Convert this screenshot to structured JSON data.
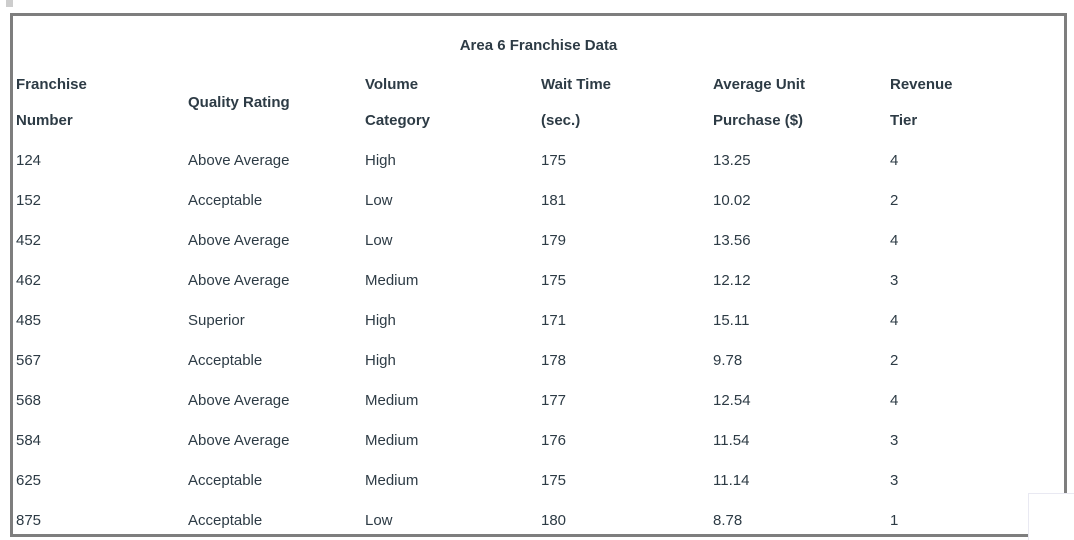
{
  "colors": {
    "text": "#2d3b45",
    "table_border": "#7e7e7e",
    "overlay_border": "#e9e9f2",
    "corner_mark": "#cdcdcd",
    "background": "#ffffff"
  },
  "table": {
    "title": "Area 6 Franchise Data",
    "headers": [
      [
        "Franchise",
        "Number"
      ],
      [
        "Quality Rating"
      ],
      [
        "Volume",
        "Category"
      ],
      [
        "Wait Time",
        "(sec.)"
      ],
      [
        "Average Unit",
        "Purchase ($)"
      ],
      [
        "Revenue",
        "Tier"
      ]
    ],
    "rows": [
      [
        "124",
        "Above Average",
        "High",
        "175",
        "13.25",
        "4"
      ],
      [
        "152",
        "Acceptable",
        "Low",
        "181",
        "10.02",
        "2"
      ],
      [
        "452",
        "Above Average",
        "Low",
        "179",
        "13.56",
        "4"
      ],
      [
        "462",
        "Above Average",
        "Medium",
        "175",
        "12.12",
        "3"
      ],
      [
        "485",
        "Superior",
        "High",
        "171",
        "15.11",
        "4"
      ],
      [
        "567",
        "Acceptable",
        "High",
        "178",
        "9.78",
        "2"
      ],
      [
        "568",
        "Above Average",
        "Medium",
        "177",
        "12.54",
        "4"
      ],
      [
        "584",
        "Above Average",
        "Medium",
        "176",
        "11.54",
        "3"
      ],
      [
        "625",
        "Acceptable",
        "Medium",
        "175",
        "11.14",
        "3"
      ],
      [
        "875",
        "Acceptable",
        "Low",
        "180",
        "8.78",
        "1"
      ]
    ]
  }
}
